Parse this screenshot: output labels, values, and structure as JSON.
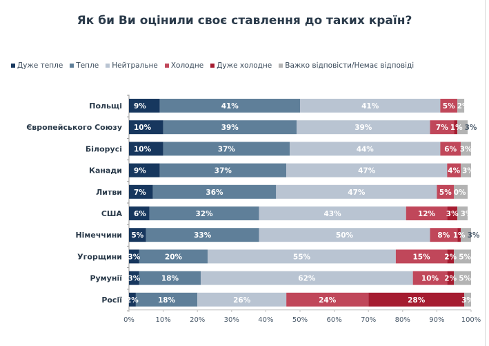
{
  "chart_data": {
    "type": "bar",
    "orientation": "horizontal",
    "stacked": true,
    "title": "Як би Ви оцінили своє ставлення до таких країн?",
    "xlabel": "",
    "ylabel": "",
    "xlim": [
      0,
      100
    ],
    "x_ticks": [
      "0%",
      "10%",
      "20%",
      "30%",
      "40%",
      "50%",
      "60%",
      "70%",
      "80%",
      "90%",
      "100%"
    ],
    "legend_position": "top",
    "categories": [
      "Польщі",
      "Європейського Союзу",
      "Білорусі",
      "Канади",
      "Литви",
      "США",
      "Німеччини",
      "Угорщини",
      "Румунії",
      "Росії"
    ],
    "series": [
      {
        "name": "Дуже тепле",
        "color": "#17375e",
        "values": [
          9,
          10,
          10,
          9,
          7,
          6,
          5,
          3,
          3,
          2
        ]
      },
      {
        "name": "Тепле",
        "color": "#5f7f99",
        "values": [
          41,
          39,
          37,
          37,
          36,
          32,
          33,
          20,
          18,
          18
        ]
      },
      {
        "name": "Нейтральне",
        "color": "#b9c4d2",
        "values": [
          41,
          39,
          44,
          47,
          47,
          43,
          50,
          55,
          62,
          26
        ]
      },
      {
        "name": "Холодне",
        "color": "#c0475a",
        "values": [
          5,
          7,
          6,
          4,
          5,
          12,
          8,
          15,
          10,
          24
        ]
      },
      {
        "name": "Дуже холодне",
        "color": "#a51c30",
        "values": [
          0,
          1,
          0,
          0,
          0,
          3,
          1,
          2,
          2,
          28
        ]
      },
      {
        "name": "Важко відповісти/Немає відповіді",
        "color": "#b3b3b3",
        "values": [
          2,
          3,
          3,
          3,
          4,
          3,
          3,
          5,
          5,
          3
        ]
      }
    ],
    "data_labels": [
      [
        "9%",
        "41%",
        "41%",
        "5%",
        "",
        "2%"
      ],
      [
        "10%",
        "39%",
        "39%",
        "7%",
        "1%",
        "3%"
      ],
      [
        "10%",
        "37%",
        "44%",
        "6%",
        "",
        "3%"
      ],
      [
        "9%",
        "37%",
        "47%",
        "4%",
        "",
        "3%"
      ],
      [
        "7%",
        "36%",
        "47%",
        "5%",
        "0%",
        "4%"
      ],
      [
        "6%",
        "32%",
        "43%",
        "12%",
        "3%",
        "3%"
      ],
      [
        "5%",
        "33%",
        "50%",
        "8%",
        "1%",
        "3%"
      ],
      [
        "3%",
        "20%",
        "55%",
        "15%",
        "2%",
        "5%"
      ],
      [
        "3%",
        "18%",
        "62%",
        "10%",
        "2%",
        "5%"
      ],
      [
        "2%",
        "18%",
        "26%",
        "24%",
        "28%",
        "3%"
      ]
    ]
  }
}
